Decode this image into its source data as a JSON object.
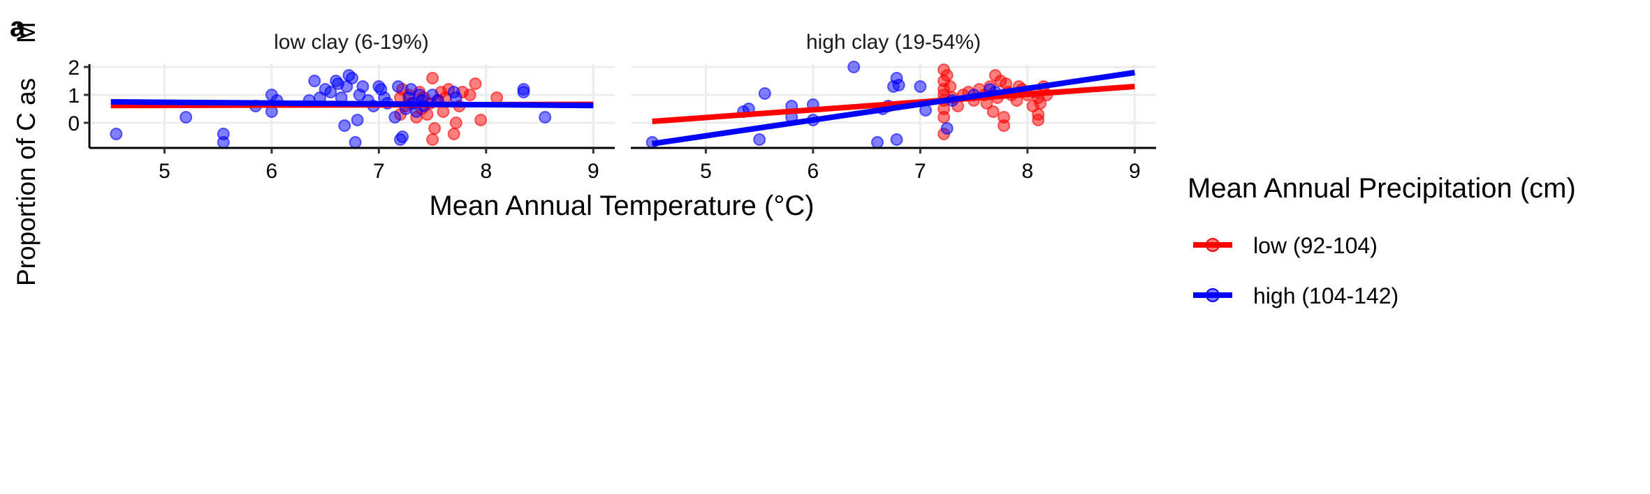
{
  "chart_data": [
    {
      "type": "scatter",
      "panel": "low clay (6-19%)",
      "xlim": [
        4.3,
        9.2
      ],
      "ylim": [
        -0.9,
        2.1
      ],
      "xticks": [
        5,
        6,
        7,
        8,
        9
      ],
      "yticks": [
        0,
        1,
        2
      ],
      "grid": true,
      "series": [
        {
          "name": "low (92-104)",
          "color": "#ff0000",
          "points": [
            [
              7.2,
              0.3
            ],
            [
              7.2,
              0.9
            ],
            [
              7.22,
              1.2
            ],
            [
              7.25,
              0.6
            ],
            [
              7.28,
              1.0
            ],
            [
              7.3,
              0.7
            ],
            [
              7.35,
              0.2
            ],
            [
              7.38,
              1.1
            ],
            [
              7.4,
              0.5
            ],
            [
              7.42,
              0.9
            ],
            [
              7.45,
              0.3
            ],
            [
              7.48,
              0.7
            ],
            [
              7.5,
              1.6
            ],
            [
              7.5,
              -0.6
            ],
            [
              7.52,
              -0.2
            ],
            [
              7.55,
              0.8
            ],
            [
              7.58,
              1.1
            ],
            [
              7.6,
              0.4
            ],
            [
              7.62,
              0.9
            ],
            [
              7.65,
              1.2
            ],
            [
              7.7,
              -0.4
            ],
            [
              7.72,
              0.0
            ],
            [
              7.75,
              0.6
            ],
            [
              7.78,
              1.1
            ],
            [
              7.85,
              1.0
            ],
            [
              7.9,
              1.4
            ],
            [
              7.95,
              0.1
            ],
            [
              8.1,
              0.9
            ]
          ],
          "fit": {
            "x": [
              4.5,
              9.0
            ],
            "y": [
              0.62,
              0.66
            ]
          }
        },
        {
          "name": "high (104-142)",
          "color": "#0000ff",
          "points": [
            [
              4.55,
              -0.4
            ],
            [
              5.2,
              0.2
            ],
            [
              5.55,
              -0.4
            ],
            [
              5.55,
              -0.7
            ],
            [
              5.85,
              0.6
            ],
            [
              6.0,
              0.4
            ],
            [
              6.0,
              1.0
            ],
            [
              6.05,
              0.8
            ],
            [
              6.4,
              1.5
            ],
            [
              6.35,
              0.8
            ],
            [
              6.45,
              0.9
            ],
            [
              6.5,
              1.2
            ],
            [
              6.55,
              1.1
            ],
            [
              6.6,
              1.5
            ],
            [
              6.62,
              1.4
            ],
            [
              6.65,
              0.9
            ],
            [
              6.68,
              -0.1
            ],
            [
              6.7,
              1.3
            ],
            [
              6.72,
              1.7
            ],
            [
              6.75,
              1.6
            ],
            [
              6.78,
              -0.7
            ],
            [
              6.8,
              0.1
            ],
            [
              6.82,
              1.0
            ],
            [
              6.85,
              1.3
            ],
            [
              6.9,
              0.8
            ],
            [
              6.95,
              0.6
            ],
            [
              7.0,
              1.3
            ],
            [
              7.02,
              1.2
            ],
            [
              7.05,
              0.9
            ],
            [
              7.08,
              0.7
            ],
            [
              7.15,
              0.2
            ],
            [
              7.18,
              1.3
            ],
            [
              7.2,
              -0.6
            ],
            [
              7.22,
              -0.5
            ],
            [
              7.25,
              0.5
            ],
            [
              7.28,
              0.9
            ],
            [
              7.3,
              1.2
            ],
            [
              7.32,
              0.7
            ],
            [
              7.35,
              0.4
            ],
            [
              7.38,
              1.0
            ],
            [
              7.4,
              0.8
            ],
            [
              7.42,
              0.6
            ],
            [
              7.5,
              1.0
            ],
            [
              7.55,
              0.8
            ],
            [
              7.7,
              1.1
            ],
            [
              7.72,
              0.9
            ],
            [
              8.35,
              1.1
            ],
            [
              8.35,
              1.2
            ],
            [
              8.55,
              0.2
            ]
          ],
          "fit": {
            "x": [
              4.5,
              9.0
            ],
            "y": [
              0.75,
              0.62
            ]
          }
        }
      ]
    },
    {
      "type": "scatter",
      "panel": "high clay (19-54%)",
      "xlim": [
        4.3,
        9.2
      ],
      "ylim": [
        -0.9,
        2.1
      ],
      "xticks": [
        5,
        6,
        7,
        8,
        9
      ],
      "yticks": [
        0,
        1,
        2
      ],
      "grid": true,
      "series": [
        {
          "name": "low (92-104)",
          "color": "#ff0000",
          "points": [
            [
              7.22,
              1.9
            ],
            [
              7.22,
              1.5
            ],
            [
              7.22,
              1.2
            ],
            [
              7.22,
              1.0
            ],
            [
              7.22,
              0.8
            ],
            [
              7.22,
              0.5
            ],
            [
              7.22,
              0.2
            ],
            [
              7.22,
              -0.4
            ],
            [
              7.25,
              1.7
            ],
            [
              7.28,
              1.3
            ],
            [
              7.3,
              0.9
            ],
            [
              7.35,
              0.6
            ],
            [
              7.4,
              1.0
            ],
            [
              7.45,
              1.1
            ],
            [
              7.5,
              0.8
            ],
            [
              7.55,
              1.2
            ],
            [
              7.6,
              1.0
            ],
            [
              7.62,
              0.7
            ],
            [
              7.65,
              1.3
            ],
            [
              7.68,
              0.4
            ],
            [
              7.7,
              1.7
            ],
            [
              7.72,
              0.9
            ],
            [
              7.75,
              1.5
            ],
            [
              7.78,
              0.2
            ],
            [
              7.78,
              -0.1
            ],
            [
              7.8,
              1.4
            ],
            [
              7.82,
              1.1
            ],
            [
              7.85,
              1.0
            ],
            [
              7.9,
              0.8
            ],
            [
              7.92,
              1.3
            ],
            [
              7.95,
              1.2
            ],
            [
              8.0,
              1.0
            ],
            [
              8.05,
              0.6
            ],
            [
              8.08,
              1.1
            ],
            [
              8.1,
              0.9
            ],
            [
              8.1,
              0.3
            ],
            [
              8.1,
              0.1
            ],
            [
              8.12,
              0.7
            ],
            [
              8.15,
              1.3
            ],
            [
              8.18,
              1.0
            ]
          ],
          "fit": {
            "x": [
              4.5,
              9.0
            ],
            "y": [
              0.05,
              1.3
            ]
          }
        },
        {
          "name": "high (104-142)",
          "color": "#0000ff",
          "points": [
            [
              4.5,
              -0.7
            ],
            [
              5.35,
              0.4
            ],
            [
              5.4,
              0.5
            ],
            [
              5.5,
              -0.6
            ],
            [
              5.55,
              1.05
            ],
            [
              5.8,
              0.6
            ],
            [
              5.8,
              0.2
            ],
            [
              6.0,
              0.65
            ],
            [
              6.0,
              0.1
            ],
            [
              6.38,
              2.0
            ],
            [
              6.6,
              -0.7
            ],
            [
              6.65,
              0.5
            ],
            [
              6.7,
              0.6
            ],
            [
              6.75,
              1.3
            ],
            [
              6.78,
              1.6
            ],
            [
              6.78,
              -0.6
            ],
            [
              6.8,
              1.35
            ],
            [
              7.0,
              1.3
            ],
            [
              7.05,
              0.45
            ],
            [
              7.25,
              -0.2
            ],
            [
              7.3,
              0.8
            ],
            [
              7.5,
              1.0
            ],
            [
              7.65,
              1.2
            ],
            [
              7.7,
              1.1
            ]
          ],
          "fit": {
            "x": [
              4.5,
              9.0
            ],
            "y": [
              -0.75,
              1.8
            ]
          }
        }
      ]
    }
  ],
  "labels": {
    "xlabel": "Mean Annual Temperature (°C)",
    "ylabel": "Proportion of C as",
    "panel_tag": "a",
    "panel_titles": [
      "low clay (6-19%)",
      "high clay (19-54%)"
    ]
  },
  "legend": {
    "title": "Mean Annual Precipitation (cm)",
    "placement": "right",
    "items": [
      {
        "label": "low (92-104)",
        "color": "#ff0000"
      },
      {
        "label": "high (104-142)",
        "color": "#0000ff"
      }
    ]
  }
}
